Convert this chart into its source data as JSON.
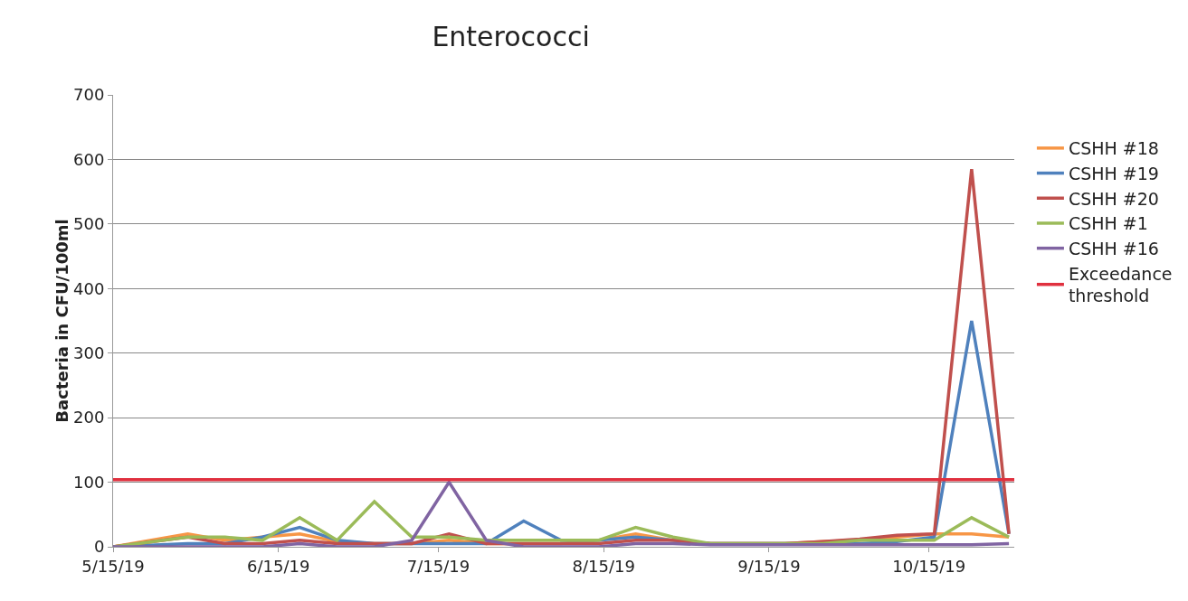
{
  "chart_data": {
    "type": "line",
    "title": "Enterococci",
    "ylabel": "Bacteria in CFU/100ml",
    "x": [
      "2019-05-15",
      "2019-05-29",
      "2019-06-05",
      "2019-06-12",
      "2019-06-19",
      "2019-06-26",
      "2019-07-03",
      "2019-07-10",
      "2019-07-17",
      "2019-07-24",
      "2019-07-31",
      "2019-08-07",
      "2019-08-14",
      "2019-08-21",
      "2019-08-28",
      "2019-09-04",
      "2019-09-11",
      "2019-09-18",
      "2019-09-25",
      "2019-10-02",
      "2019-10-09",
      "2019-10-16",
      "2019-10-23",
      "2019-10-30"
    ],
    "series": [
      {
        "name": "CSHH #18",
        "color": "#f79646",
        "values": [
          0,
          20,
          10,
          15,
          20,
          8,
          5,
          5,
          10,
          5,
          5,
          5,
          10,
          20,
          10,
          5,
          5,
          5,
          8,
          10,
          15,
          20,
          20,
          15
        ]
      },
      {
        "name": "CSHH #19",
        "color": "#4f81bd",
        "values": [
          0,
          5,
          5,
          15,
          30,
          10,
          5,
          5,
          5,
          5,
          40,
          10,
          10,
          15,
          10,
          5,
          5,
          5,
          5,
          5,
          8,
          15,
          350,
          20
        ]
      },
      {
        "name": "CSHH #20",
        "color": "#c0504d",
        "values": [
          0,
          15,
          5,
          5,
          10,
          5,
          5,
          5,
          20,
          5,
          5,
          5,
          5,
          10,
          10,
          5,
          5,
          5,
          8,
          12,
          18,
          20,
          585,
          20
        ]
      },
      {
        "name": "CSHH #1",
        "color": "#9bbb59",
        "values": [
          0,
          15,
          15,
          10,
          45,
          10,
          70,
          15,
          15,
          10,
          10,
          10,
          10,
          30,
          15,
          5,
          5,
          5,
          5,
          10,
          10,
          10,
          45,
          15
        ]
      },
      {
        "name": "CSHH #16",
        "color": "#8064a2",
        "values": [
          0,
          0,
          0,
          0,
          5,
          0,
          0,
          10,
          100,
          10,
          0,
          0,
          0,
          5,
          5,
          3,
          3,
          3,
          3,
          3,
          3,
          3,
          3,
          5
        ]
      }
    ],
    "ref_lines": [
      {
        "axis": "y",
        "value": 104,
        "label": "Exceedance threshold",
        "color": "#e0303e"
      }
    ],
    "xlim": [
      "2019-05-15",
      "2019-10-31"
    ],
    "xticks": [
      {
        "value": "2019-05-15",
        "label": "5/15/19"
      },
      {
        "value": "2019-06-15",
        "label": "6/15/19"
      },
      {
        "value": "2019-07-15",
        "label": "7/15/19"
      },
      {
        "value": "2019-08-15",
        "label": "8/15/19"
      },
      {
        "value": "2019-09-15",
        "label": "9/15/19"
      },
      {
        "value": "2019-10-15",
        "label": "10/15/19"
      }
    ],
    "ylim": [
      0,
      700
    ],
    "yticks": [
      0,
      100,
      200,
      300,
      400,
      500,
      600,
      700
    ],
    "grid": "y",
    "legend": "right",
    "marker": "none",
    "line_style": "solid"
  }
}
